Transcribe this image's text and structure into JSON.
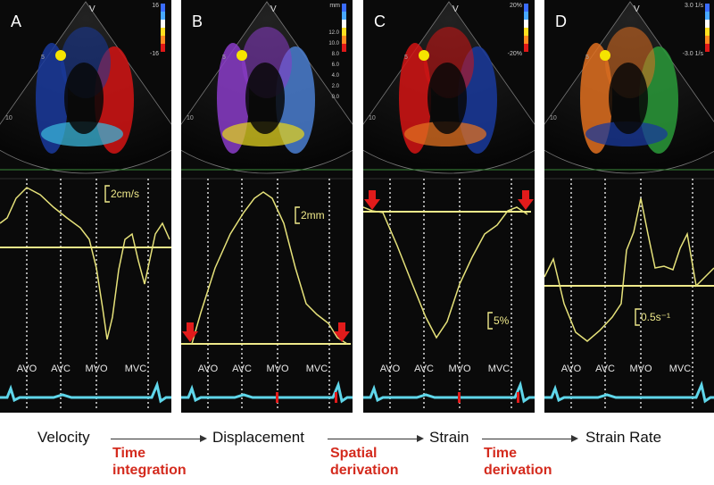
{
  "panels": [
    {
      "letter": "A",
      "scale_top": "16",
      "scale_bottom": "-16",
      "depth_marks": [
        "5",
        "10"
      ],
      "apex_label": "V",
      "amplitude_label": "2cm/s",
      "events": [
        "AVO",
        "AVC",
        "MVO",
        "MVC"
      ],
      "curve": [
        [
          0,
          250
        ],
        [
          8,
          244
        ],
        [
          18,
          222
        ],
        [
          30,
          210
        ],
        [
          45,
          218
        ],
        [
          60,
          232
        ],
        [
          75,
          244
        ],
        [
          90,
          255
        ],
        [
          100,
          268
        ],
        [
          108,
          300
        ],
        [
          115,
          345
        ],
        [
          120,
          380
        ],
        [
          126,
          355
        ],
        [
          133,
          302
        ],
        [
          140,
          268
        ],
        [
          148,
          262
        ],
        [
          155,
          292
        ],
        [
          162,
          318
        ],
        [
          168,
          290
        ],
        [
          174,
          262
        ],
        [
          182,
          250
        ],
        [
          190,
          268
        ]
      ],
      "baseline_y": 277,
      "baseline_x": [
        0,
        192
      ],
      "arrows_x": [],
      "colors": [
        "#1a3a9c",
        "#d41414",
        "#3ab4d8"
      ]
    },
    {
      "letter": "B",
      "scale_top": "mm",
      "scale_values": [
        "12.0",
        "10.0",
        "8.0",
        "6.0",
        "4.0",
        "2.0",
        "0.0"
      ],
      "depth_marks": [
        "5",
        "10"
      ],
      "apex_label": "V",
      "amplitude_label": "2mm",
      "events": [
        "AVO",
        "AVC",
        "MVO",
        "MVC"
      ],
      "curve": [
        [
          0,
          385
        ],
        [
          12,
          385
        ],
        [
          22,
          350
        ],
        [
          38,
          300
        ],
        [
          55,
          262
        ],
        [
          70,
          238
        ],
        [
          82,
          222
        ],
        [
          92,
          215
        ],
        [
          102,
          222
        ],
        [
          115,
          250
        ],
        [
          128,
          300
        ],
        [
          140,
          340
        ],
        [
          152,
          352
        ],
        [
          165,
          362
        ],
        [
          175,
          378
        ],
        [
          186,
          385
        ]
      ],
      "baseline_y": 385,
      "baseline_x": [
        0,
        190
      ],
      "arrows_x": [
        2,
        172
      ],
      "colors": [
        "#8a3cc8",
        "#4a7ed0",
        "#e0d020"
      ]
    },
    {
      "letter": "C",
      "scale_top": "20%",
      "scale_bottom": "-20%",
      "depth_marks": [
        "5",
        "10"
      ],
      "apex_label": "V",
      "amplitude_label": "5%",
      "events": [
        "AVO",
        "AVC",
        "MVO",
        "MVC"
      ],
      "curve": [
        [
          0,
          232
        ],
        [
          10,
          236
        ],
        [
          22,
          238
        ],
        [
          38,
          275
        ],
        [
          55,
          318
        ],
        [
          70,
          355
        ],
        [
          82,
          378
        ],
        [
          94,
          360
        ],
        [
          108,
          318
        ],
        [
          122,
          288
        ],
        [
          136,
          262
        ],
        [
          150,
          252
        ],
        [
          162,
          236
        ],
        [
          172,
          232
        ],
        [
          184,
          240
        ]
      ],
      "baseline_y": 237,
      "baseline_x": [
        0,
        188
      ],
      "arrows_x": [
        2,
        174
      ],
      "colors": [
        "#d41414",
        "#1a3a9c",
        "#e07020"
      ]
    },
    {
      "letter": "D",
      "scale_top": "3.0 1/s",
      "scale_bottom": "-3.0 1/s",
      "depth_marks": [
        "5",
        "10"
      ],
      "apex_label": "V",
      "amplitude_label": "0.5s⁻¹",
      "events": [
        "AVO",
        "AVC",
        "MVO",
        "MVC"
      ],
      "curve": [
        [
          0,
          310
        ],
        [
          10,
          290
        ],
        [
          22,
          340
        ],
        [
          35,
          372
        ],
        [
          48,
          382
        ],
        [
          62,
          370
        ],
        [
          76,
          355
        ],
        [
          86,
          340
        ],
        [
          92,
          280
        ],
        [
          100,
          260
        ],
        [
          108,
          222
        ],
        [
          116,
          262
        ],
        [
          124,
          300
        ],
        [
          134,
          298
        ],
        [
          144,
          302
        ],
        [
          152,
          278
        ],
        [
          160,
          262
        ],
        [
          170,
          320
        ],
        [
          180,
          310
        ],
        [
          190,
          300
        ]
      ],
      "baseline_y": 320,
      "baseline_x": [
        0,
        190
      ],
      "arrows_x": [],
      "colors": [
        "#e07020",
        "#2a9a3a",
        "#1a3a9c"
      ]
    }
  ],
  "flow": {
    "steps": [
      "Velocity",
      "Displacement",
      "Strain",
      "Strain Rate"
    ],
    "operations": [
      [
        "Time",
        "integration"
      ],
      [
        "Spatial",
        "derivation"
      ],
      [
        "Time",
        "derivation"
      ]
    ]
  }
}
